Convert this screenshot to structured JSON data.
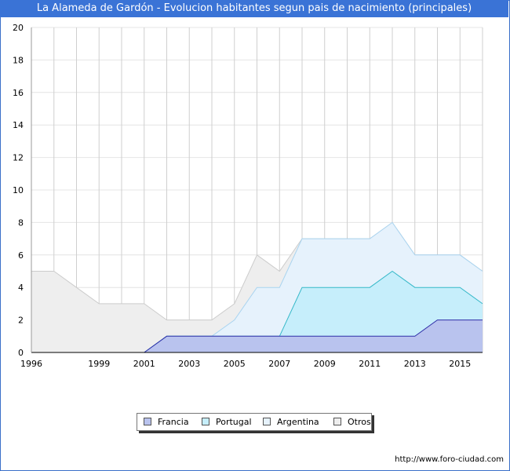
{
  "title": "La Alameda de Gardón - Evolucion habitantes segun pais de nacimiento (principales)",
  "source": "http://www.foro-ciudad.com",
  "chart_data": {
    "type": "area",
    "stacked": true,
    "x": [
      1996,
      1997,
      1998,
      1999,
      2000,
      2001,
      2002,
      2003,
      2004,
      2005,
      2006,
      2007,
      2008,
      2009,
      2010,
      2011,
      2012,
      2013,
      2014,
      2015,
      2016
    ],
    "x_ticks": [
      "1996",
      "1999",
      "2001",
      "2003",
      "2005",
      "2007",
      "2009",
      "2011",
      "2013",
      "2015"
    ],
    "y_ticks": [
      "0",
      "2",
      "4",
      "6",
      "8",
      "10",
      "12",
      "14",
      "16",
      "18",
      "20"
    ],
    "ylim": [
      0,
      20
    ],
    "xlim": [
      1996,
      2016
    ],
    "grid": true,
    "legend_position": "bottom-center",
    "series": [
      {
        "name": "Francia",
        "color": "#b9c3ee",
        "stroke": "#2f2fa8",
        "values": [
          0,
          0,
          0,
          0,
          0,
          0,
          1,
          1,
          1,
          1,
          1,
          1,
          1,
          1,
          1,
          1,
          1,
          1,
          2,
          2,
          2
        ]
      },
      {
        "name": "Portugal",
        "color": "#c6eefb",
        "stroke": "#35b8c8",
        "values": [
          0,
          0,
          0,
          0,
          0,
          0,
          0,
          0,
          0,
          0,
          0,
          0,
          3,
          3,
          3,
          3,
          4,
          3,
          2,
          2,
          1
        ]
      },
      {
        "name": "Argentina",
        "color": "#e6f2fc",
        "stroke": "#a9d4f0",
        "values": [
          0,
          0,
          0,
          0,
          0,
          0,
          0,
          0,
          0,
          1,
          3,
          3,
          3,
          3,
          3,
          3,
          3,
          2,
          2,
          2,
          2
        ]
      },
      {
        "name": "Otros",
        "color": "#eeeeee",
        "stroke": "#cccccc",
        "values": [
          5,
          5,
          4,
          3,
          3,
          3,
          1,
          1,
          1,
          1,
          2,
          1,
          0,
          0,
          0,
          0,
          0,
          0,
          0,
          0,
          0
        ]
      }
    ]
  }
}
